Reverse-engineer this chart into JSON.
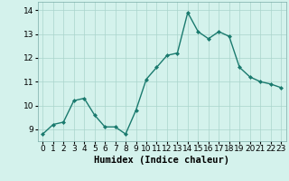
{
  "x": [
    0,
    1,
    2,
    3,
    4,
    5,
    6,
    7,
    8,
    9,
    10,
    11,
    12,
    13,
    14,
    15,
    16,
    17,
    18,
    19,
    20,
    21,
    22,
    23
  ],
  "y": [
    8.8,
    9.2,
    9.3,
    10.2,
    10.3,
    9.6,
    9.1,
    9.1,
    8.8,
    9.8,
    11.1,
    11.6,
    12.1,
    12.2,
    13.9,
    13.1,
    12.8,
    13.1,
    12.9,
    11.6,
    11.2,
    11.0,
    10.9,
    10.75
  ],
  "line_color": "#1a7a6e",
  "marker": "D",
  "marker_size": 2.0,
  "bg_color": "#d4f2ec",
  "grid_color": "#aad4cc",
  "xlabel": "Humidex (Indice chaleur)",
  "xlim": [
    -0.5,
    23.5
  ],
  "ylim": [
    8.5,
    14.35
  ],
  "yticks": [
    9,
    10,
    11,
    12,
    13,
    14
  ],
  "xticks": [
    0,
    1,
    2,
    3,
    4,
    5,
    6,
    7,
    8,
    9,
    10,
    11,
    12,
    13,
    14,
    15,
    16,
    17,
    18,
    19,
    20,
    21,
    22,
    23
  ],
  "xlabel_fontsize": 7.5,
  "tick_fontsize": 6.5,
  "line_width": 1.0
}
